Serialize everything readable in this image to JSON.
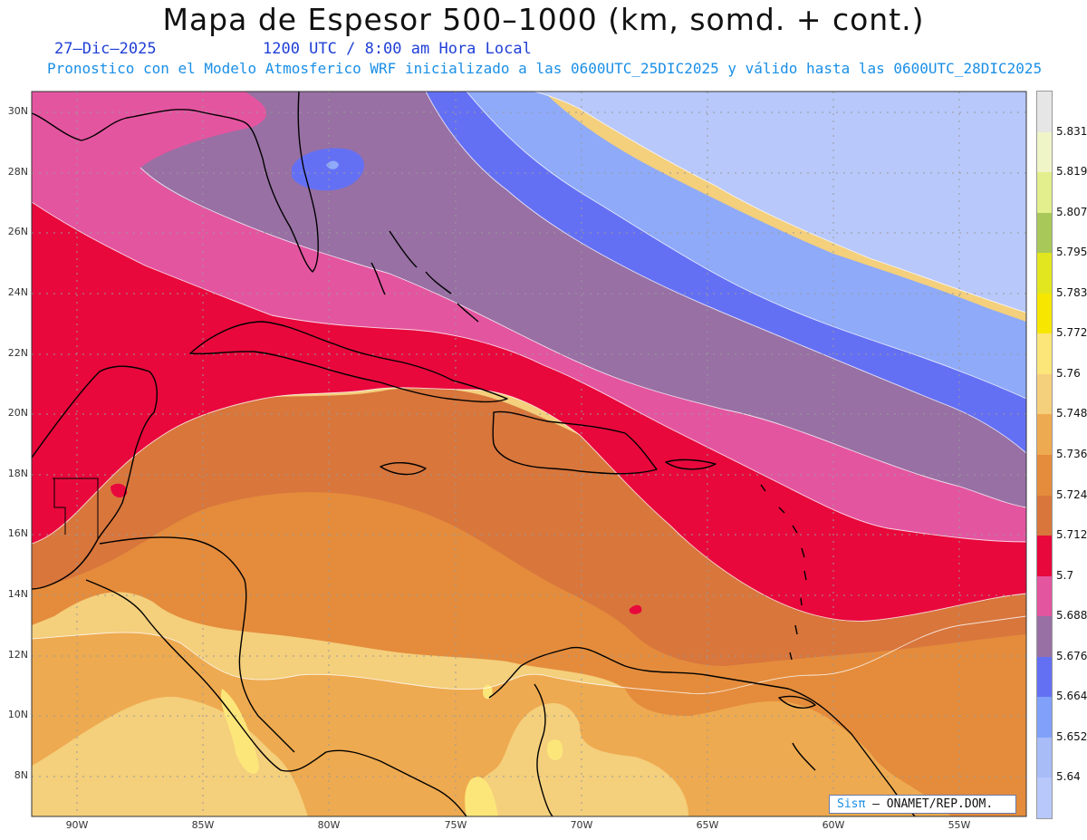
{
  "header": {
    "title": "Mapa de Espesor 500–1000 (km, somd. + cont.)",
    "date": "27–Dic–2025",
    "valid_time": "1200 UTC / 8:00 am Hora Local",
    "model_info": "Pronostico con el Modelo Atmosferico WRF inicializado a las 0600UTC_25DIC2025 y válido hasta las  0600UTC_28DIC2025"
  },
  "map": {
    "lat_labels": [
      "30N",
      "28N",
      "26N",
      "24N",
      "22N",
      "20N",
      "18N",
      "16N",
      "14N",
      "12N",
      "10N",
      "8N"
    ],
    "lon_labels": [
      "90W",
      "85W",
      "80W",
      "75W",
      "70W",
      "65W",
      "60W",
      "55W"
    ],
    "credit_sis": "Sisπ",
    "credit_text": " – ONAMET/REP.DOM."
  },
  "legend": {
    "levels": [
      "5.831",
      "5.819",
      "5.807",
      "5.795",
      "5.783",
      "5.772",
      "5.76",
      "5.748",
      "5.736",
      "5.724",
      "5.712",
      "5.7",
      "5.688",
      "5.676",
      "5.664",
      "5.652",
      "5.64"
    ],
    "colors": [
      "#e6e6e6",
      "#f0f5c8",
      "#e2ef8c",
      "#a8c85a",
      "#e2e61e",
      "#f6e600",
      "#fce67a",
      "#f4cf7c",
      "#eeaa50",
      "#e48c3c",
      "#d8763c",
      "#e8083c",
      "#e455a0",
      "#9870a4",
      "#6470f4",
      "#80a0fa",
      "#a8bcf8",
      "#b8c8fa"
    ]
  },
  "colors": {
    "c5640": "#b8c8fa",
    "c5652": "#8eaaf9",
    "c5664": "#6470f4",
    "c5676": "#9870a4",
    "c5688": "#e455a0",
    "c5700": "#e8083c",
    "c5712": "#d8763c",
    "c5724": "#e48c3c",
    "c5736": "#eeaa50",
    "c5748": "#f4cf7c",
    "c5760": "#fce67a"
  }
}
